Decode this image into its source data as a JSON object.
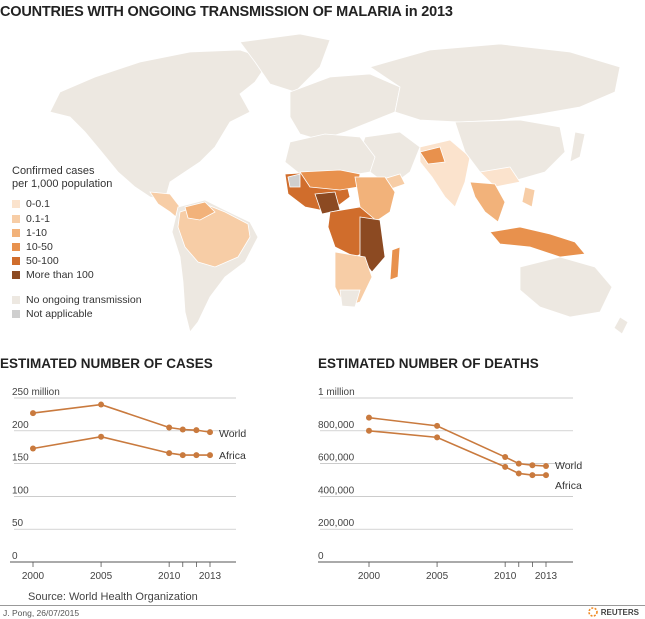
{
  "title": "COUNTRIES WITH ONGOING TRANSMISSION OF MALARIA in 2013",
  "legend": {
    "title_line1": "Confirmed cases",
    "title_line2": "per 1,000 population",
    "items": [
      {
        "label": "0-0.1",
        "color": "#fbe3cd"
      },
      {
        "label": "0.1-1",
        "color": "#f7cda6"
      },
      {
        "label": "1-10",
        "color": "#f2b27a"
      },
      {
        "label": "10-50",
        "color": "#e8914d"
      },
      {
        "label": "50-100",
        "color": "#d06d2c"
      },
      {
        "label": "More than 100",
        "color": "#8c4a22"
      }
    ],
    "extra": [
      {
        "label": "No ongoing transmission",
        "color": "#ede8e1"
      },
      {
        "label": "Not applicable",
        "color": "#cfcfcf"
      }
    ]
  },
  "charts": {
    "cases_title": "ESTIMATED NUMBER OF CASES",
    "deaths_title": "ESTIMATED NUMBER OF DEATHS"
  },
  "chart_data": [
    {
      "type": "line",
      "title": "ESTIMATED NUMBER OF CASES",
      "x": [
        2000,
        2005,
        2010,
        2011,
        2012,
        2013
      ],
      "xticks": [
        "2000",
        "2005",
        "2010",
        "2013"
      ],
      "yticks": [
        "250 million",
        "200",
        "150",
        "100",
        "50",
        "0"
      ],
      "ylim": [
        0,
        250
      ],
      "grid": true,
      "series": [
        {
          "name": "World",
          "values": [
            227,
            240,
            205,
            202,
            201,
            198
          ]
        },
        {
          "name": "Africa",
          "values": [
            173,
            191,
            166,
            163,
            163,
            163
          ]
        }
      ]
    },
    {
      "type": "line",
      "title": "ESTIMATED NUMBER OF DEATHS",
      "x": [
        2000,
        2005,
        2010,
        2011,
        2012,
        2013
      ],
      "xticks": [
        "2000",
        "2005",
        "2010",
        "2013"
      ],
      "yticks": [
        "1 million",
        "800,000",
        "600,000",
        "400,000",
        "200,000",
        "0"
      ],
      "ylim": [
        0,
        1000000
      ],
      "grid": true,
      "series": [
        {
          "name": "World",
          "values": [
            880000,
            830000,
            640000,
            600000,
            590000,
            585000
          ]
        },
        {
          "name": "Africa",
          "values": [
            800000,
            760000,
            580000,
            540000,
            530000,
            530000
          ]
        }
      ]
    }
  ],
  "footer": {
    "source": "Source: World Health Organization",
    "credit": "J. Pong, 26/07/2015",
    "brand": "REUTERS"
  },
  "colors": {
    "line": "#c97a3e",
    "land": "#ede8e1",
    "grid": "#bbbbbb"
  }
}
